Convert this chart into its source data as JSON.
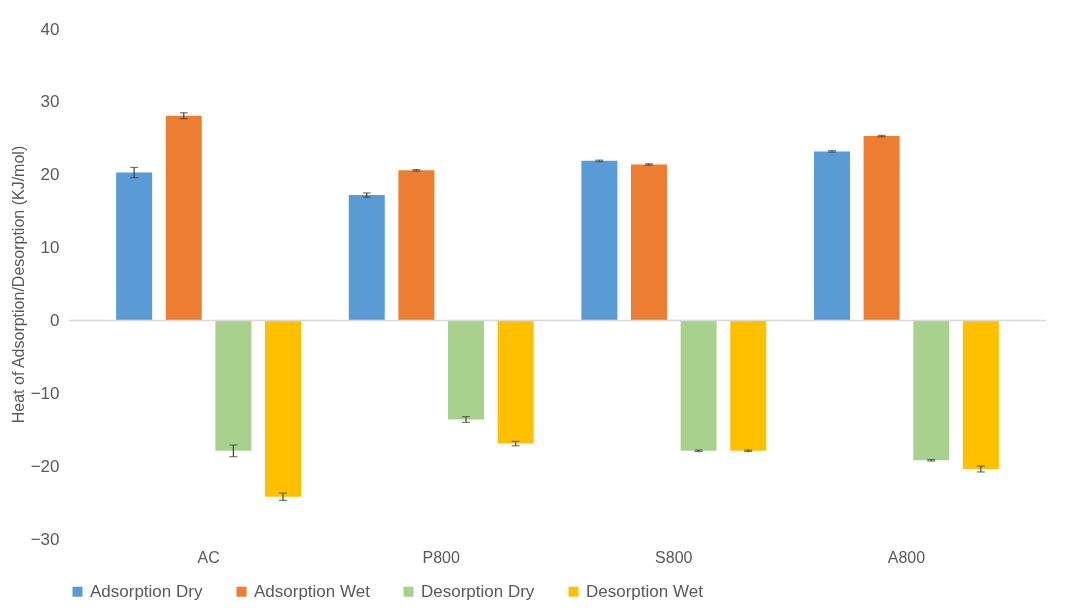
{
  "chart_data": {
    "type": "bar",
    "ylabel": "Heat of Adsorption/Desorption (KJ/mol)",
    "categories": [
      "AC",
      "P800",
      "S800",
      "A800"
    ],
    "series": [
      {
        "name": "Adsorption Dry",
        "color": "#5b9bd5",
        "values": [
          20.3,
          17.2,
          21.9,
          23.2
        ],
        "errors": [
          0.7,
          0.3,
          0.1,
          0.1
        ]
      },
      {
        "name": "Adsorption Wet",
        "color": "#ed7d31",
        "values": [
          28.1,
          20.6,
          21.4,
          25.3
        ],
        "errors": [
          0.4,
          0.1,
          0.1,
          0.1
        ]
      },
      {
        "name": "Desorption Dry",
        "color": "#a9d18e",
        "values": [
          -17.9,
          -13.6,
          -17.9,
          -19.2
        ],
        "errors": [
          0.8,
          0.4,
          0.1,
          0.1
        ]
      },
      {
        "name": "Desorption Wet",
        "color": "#ffc000",
        "values": [
          -24.2,
          -16.9,
          -17.9,
          -20.4
        ],
        "errors": [
          0.5,
          0.3,
          0.1,
          0.4
        ]
      }
    ],
    "ylim": [
      -30,
      40
    ],
    "yticks": [
      -30,
      -20,
      -10,
      0,
      10,
      20,
      30,
      40
    ],
    "grid": false,
    "ref_lines": [
      {
        "axis": "y",
        "value": 0,
        "color": "#d9d9d9"
      }
    ],
    "legend": "bottom"
  }
}
